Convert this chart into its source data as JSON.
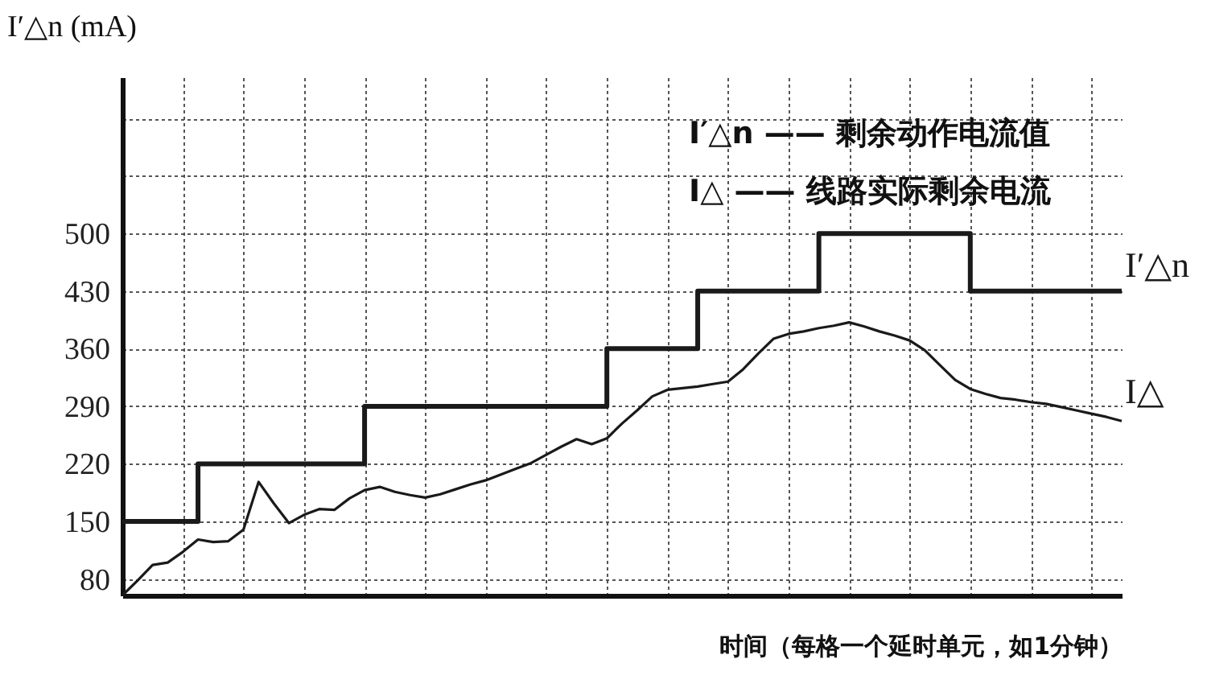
{
  "chart_data": {
    "type": "line",
    "ylabel": "I′△n (mA)",
    "xlabel": "时间（每格一个延时单元，如1分钟）",
    "annotations": [
      "I′△n —— 剩余动作电流值",
      "I△ —— 线路实际剩余电流"
    ],
    "categories": [
      null,
      null,
      null,
      null,
      null,
      null,
      null,
      null,
      null,
      null,
      null,
      null,
      null,
      null,
      null,
      null,
      null,
      null,
      null,
      null,
      null,
      null,
      null,
      null,
      null,
      null,
      null,
      null,
      null,
      null,
      null,
      null,
      null,
      null,
      null,
      null,
      null,
      null,
      null,
      null,
      null,
      null,
      null,
      null,
      null,
      null,
      null,
      null,
      null,
      null,
      null,
      null,
      null,
      null,
      null,
      null,
      null,
      null,
      null,
      null,
      null,
      null,
      null,
      null,
      null,
      null,
      null
    ],
    "ylim": [
      60,
      690
    ],
    "yticks": [
      80,
      150,
      220,
      290,
      360,
      430,
      500,
      {
        "value": 570,
        "label": null
      },
      {
        "value": 640,
        "label": null
      }
    ],
    "grid": true,
    "tick_labels": "y",
    "series": [
      {
        "name": "I′△n",
        "type": "step",
        "color": "#1a1a1a",
        "values": [
          150,
          150,
          150,
          150,
          150,
          220,
          220,
          220,
          220,
          220,
          220,
          220,
          220,
          220,
          220,
          220,
          290,
          290,
          290,
          290,
          290,
          290,
          290,
          290,
          290,
          290,
          290,
          290,
          290,
          290,
          290,
          290,
          360,
          360,
          360,
          360,
          360,
          360,
          430,
          430,
          430,
          430,
          430,
          430,
          430,
          430,
          500,
          500,
          500,
          500,
          500,
          500,
          500,
          500,
          500,
          500,
          430,
          430,
          430,
          430,
          430,
          430,
          430,
          430,
          430,
          430,
          430
        ]
      },
      {
        "name": "I△",
        "type": "line",
        "color": "#1a1a1a",
        "values": [
          60,
          78,
          97,
          100,
          113,
          128,
          125,
          126,
          140,
          198,
          172,
          148,
          158,
          165,
          164,
          178,
          188,
          192,
          186,
          182,
          179,
          183,
          189,
          195,
          200,
          207,
          214,
          221,
          231,
          241,
          250,
          244,
          251,
          269,
          285,
          302,
          310,
          312,
          314,
          317,
          320,
          335,
          354,
          372,
          378,
          381,
          385,
          388,
          392,
          387,
          381,
          376,
          370,
          358,
          340,
          322,
          311,
          305,
          300,
          298,
          295,
          293,
          289,
          285,
          281,
          277,
          272
        ]
      }
    ]
  }
}
